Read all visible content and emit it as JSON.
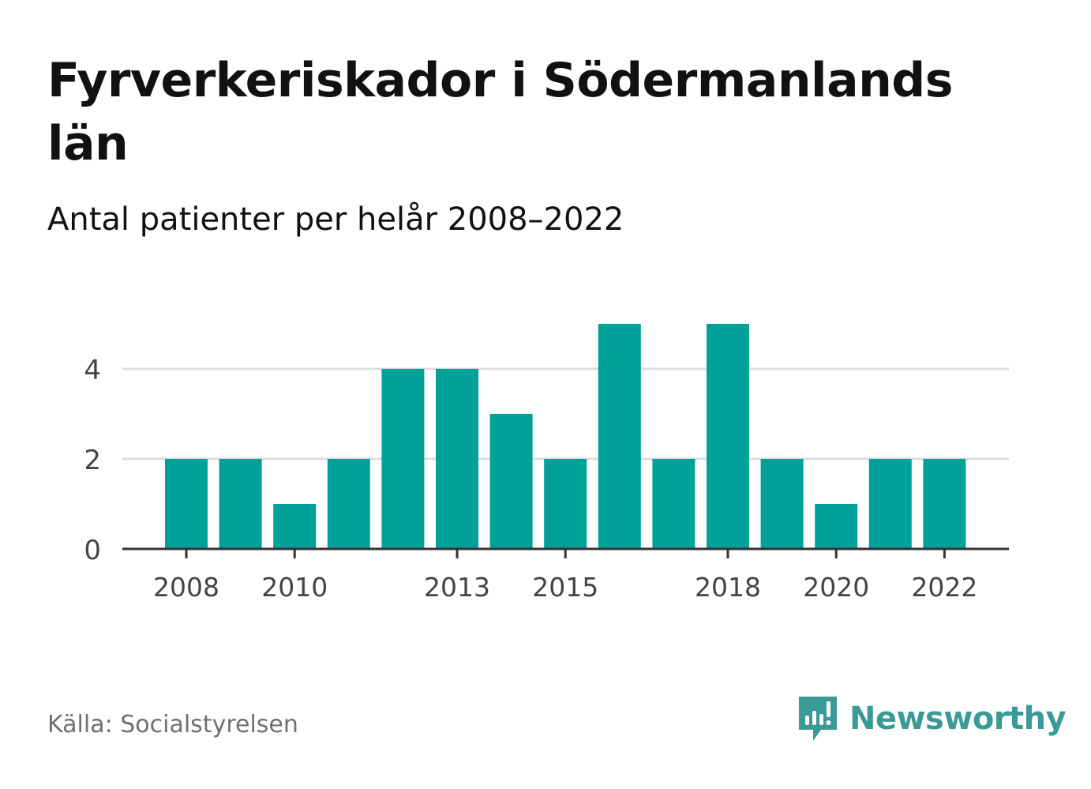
{
  "header": {
    "title": "Fyrverkeriskador i Södermanlands län",
    "subtitle": "Antal patienter per helår 2008–2022"
  },
  "footer": {
    "source": "Källa: Socialstyrelsen",
    "brand": "Newsworthy"
  },
  "colors": {
    "bar": "#00a199",
    "brand": "#3a9a96",
    "grid": "#dddddd",
    "axis": "#333333",
    "tick_label": "#444444",
    "source": "#707070"
  },
  "chart_data": {
    "type": "bar",
    "title": "Fyrverkeriskador i Södermanlands län",
    "subtitle": "Antal patienter per helår 2008–2022",
    "xlabel": "",
    "ylabel": "",
    "categories": [
      "2008",
      "2009",
      "2010",
      "2011",
      "2012",
      "2013",
      "2014",
      "2015",
      "2016",
      "2017",
      "2018",
      "2019",
      "2020",
      "2021",
      "2022"
    ],
    "values": [
      2,
      2,
      1,
      2,
      4,
      4,
      3,
      2,
      5,
      2,
      5,
      2,
      1,
      2,
      2
    ],
    "x_tick_labels": [
      "2008",
      "2010",
      "2013",
      "2015",
      "2018",
      "2020",
      "2022"
    ],
    "y_ticks": [
      0,
      2,
      4
    ],
    "ylim": [
      0,
      5
    ],
    "grid": true,
    "legend": "none"
  }
}
